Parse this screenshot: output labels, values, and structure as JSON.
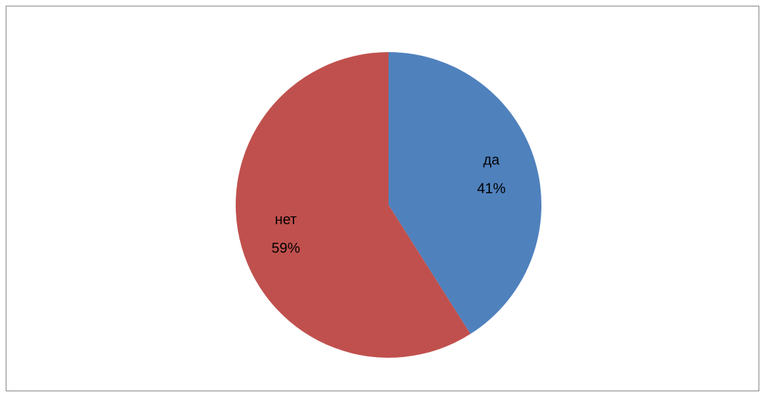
{
  "chart_data": {
    "type": "pie",
    "categories": [
      "да",
      "нет"
    ],
    "values": [
      41,
      59
    ],
    "value_labels": [
      "41%",
      "59%"
    ],
    "colors": [
      "#4f81bd",
      "#c0504d"
    ]
  }
}
